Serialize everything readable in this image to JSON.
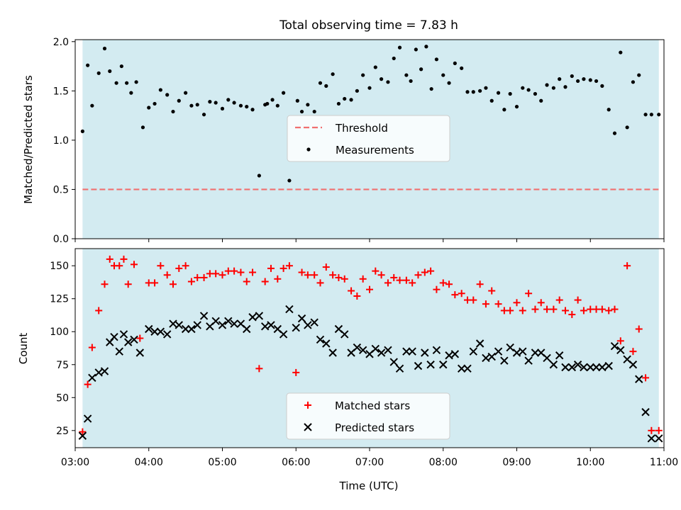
{
  "title": "Total observing time = 7.83 h",
  "colors": {
    "observing_window": "#d3ebf1",
    "threshold": "#f07070",
    "matched": "#ff0000",
    "predicted": "#000000",
    "measurement": "#000000"
  },
  "chart_data": [
    {
      "type": "scatter",
      "ylabel": "Matched/Predicted stars",
      "xlim": [
        3.0,
        11.0
      ],
      "ylim": [
        0,
        2.02
      ],
      "yticks": [
        0.0,
        0.5,
        1.0,
        1.5,
        2.0
      ],
      "ytick_labels": [
        "0.0",
        "0.5",
        "1.0",
        "1.5",
        "2.0"
      ],
      "observing_window": [
        3.1,
        10.93
      ],
      "threshold": {
        "name": "Threshold",
        "value": 0.5
      },
      "legend": {
        "position": "center",
        "entries": [
          "Threshold",
          "Measurements"
        ]
      },
      "series": [
        {
          "name": "Measurements",
          "x": [
            3.1,
            3.17,
            3.23,
            3.32,
            3.4,
            3.47,
            3.56,
            3.63,
            3.7,
            3.76,
            3.83,
            3.92,
            4.0,
            4.08,
            4.16,
            4.25,
            4.33,
            4.41,
            4.5,
            4.58,
            4.66,
            4.75,
            4.83,
            4.91,
            5.0,
            5.08,
            5.16,
            5.25,
            5.33,
            5.41,
            5.5,
            5.58,
            5.61,
            5.68,
            5.75,
            5.83,
            5.91,
            6.02,
            6.08,
            6.16,
            6.25,
            6.33,
            6.41,
            6.5,
            6.58,
            6.66,
            6.75,
            6.83,
            6.91,
            7.0,
            7.08,
            7.16,
            7.25,
            7.33,
            7.41,
            7.5,
            7.56,
            7.63,
            7.7,
            7.77,
            7.84,
            7.91,
            8.0,
            8.08,
            8.16,
            8.25,
            8.33,
            8.41,
            8.5,
            8.58,
            8.66,
            8.75,
            8.83,
            8.91,
            9.0,
            9.08,
            9.16,
            9.25,
            9.33,
            9.41,
            9.5,
            9.58,
            9.66,
            9.75,
            9.83,
            9.91,
            10.0,
            10.08,
            10.16,
            10.25,
            10.33,
            10.41,
            10.5,
            10.58,
            10.66,
            10.75,
            10.83,
            10.93
          ],
          "values": [
            1.09,
            1.76,
            1.35,
            1.68,
            1.93,
            1.7,
            1.58,
            1.75,
            1.58,
            1.48,
            1.59,
            1.13,
            1.33,
            1.37,
            1.51,
            1.46,
            1.29,
            1.4,
            1.48,
            1.35,
            1.36,
            1.26,
            1.39,
            1.38,
            1.32,
            1.41,
            1.38,
            1.35,
            1.34,
            1.31,
            0.64,
            1.36,
            1.37,
            1.41,
            1.35,
            1.48,
            0.59,
            1.4,
            1.29,
            1.36,
            1.29,
            1.58,
            1.55,
            1.67,
            1.37,
            1.42,
            1.41,
            1.5,
            1.66,
            1.53,
            1.74,
            1.62,
            1.59,
            1.83,
            1.94,
            1.66,
            1.6,
            1.92,
            1.72,
            1.95,
            1.52,
            1.82,
            1.66,
            1.58,
            1.78,
            1.73,
            1.49,
            1.49,
            1.5,
            1.53,
            1.4,
            1.48,
            1.31,
            1.47,
            1.34,
            1.53,
            1.51,
            1.47,
            1.4,
            1.56,
            1.53,
            1.62,
            1.54,
            1.65,
            1.6,
            1.62,
            1.61,
            1.6,
            1.55,
            1.31,
            1.07,
            1.89,
            1.13,
            1.59,
            1.66,
            1.26,
            1.26,
            1.26
          ]
        }
      ]
    },
    {
      "type": "scatter",
      "ylabel": "Count",
      "xlabel": "Time (UTC)",
      "xlim": [
        3.0,
        11.0
      ],
      "ylim": [
        12,
        163
      ],
      "yticks": [
        25,
        50,
        75,
        100,
        125,
        150
      ],
      "ytick_labels": [
        "25",
        "50",
        "75",
        "100",
        "125",
        "150"
      ],
      "xticks": [
        3,
        4,
        5,
        6,
        7,
        8,
        9,
        10,
        11
      ],
      "xtick_labels": [
        "03:00",
        "04:00",
        "05:00",
        "06:00",
        "07:00",
        "08:00",
        "09:00",
        "10:00",
        "11:00"
      ],
      "observing_window": [
        3.1,
        10.93
      ],
      "legend": {
        "position": "lower center",
        "entries": [
          "Matched stars",
          "Predicted stars"
        ]
      },
      "series": [
        {
          "name": "Matched stars",
          "marker": "plus",
          "x": [
            3.1,
            3.17,
            3.23,
            3.32,
            3.4,
            3.47,
            3.53,
            3.6,
            3.66,
            3.72,
            3.8,
            3.88,
            4.0,
            4.08,
            4.16,
            4.25,
            4.33,
            4.41,
            4.5,
            4.58,
            4.66,
            4.75,
            4.83,
            4.91,
            5.0,
            5.08,
            5.16,
            5.25,
            5.33,
            5.41,
            5.5,
            5.58,
            5.66,
            5.75,
            5.83,
            5.91,
            6.0,
            6.08,
            6.16,
            6.25,
            6.33,
            6.41,
            6.5,
            6.58,
            6.66,
            6.75,
            6.83,
            6.91,
            7.0,
            7.08,
            7.16,
            7.25,
            7.33,
            7.41,
            7.5,
            7.58,
            7.66,
            7.75,
            7.83,
            7.91,
            8.0,
            8.08,
            8.16,
            8.25,
            8.33,
            8.41,
            8.5,
            8.58,
            8.66,
            8.75,
            8.83,
            8.91,
            9.0,
            9.08,
            9.16,
            9.25,
            9.33,
            9.41,
            9.5,
            9.58,
            9.66,
            9.75,
            9.83,
            9.91,
            10.0,
            10.08,
            10.16,
            10.25,
            10.33,
            10.41,
            10.5,
            10.58,
            10.66,
            10.75,
            10.83,
            10.93
          ],
          "values": [
            24,
            60,
            88,
            116,
            136,
            155,
            150,
            150,
            155,
            136,
            151,
            95,
            137,
            137,
            150,
            143,
            136,
            148,
            150,
            138,
            141,
            141,
            144,
            144,
            143,
            146,
            146,
            145,
            138,
            145,
            72,
            138,
            148,
            140,
            148,
            150,
            69,
            145,
            143,
            143,
            137,
            149,
            143,
            141,
            140,
            131,
            127,
            140,
            132,
            146,
            143,
            137,
            141,
            139,
            139,
            137,
            143,
            145,
            146,
            132,
            137,
            136,
            128,
            129,
            124,
            124,
            136,
            121,
            131,
            121,
            116,
            116,
            122,
            116,
            129,
            117,
            122,
            117,
            117,
            124,
            116,
            113,
            124,
            116,
            117,
            117,
            117,
            116,
            117,
            93,
            150,
            85,
            102,
            65,
            25,
            25
          ],
          "_note": ""
        },
        {
          "name": "Predicted stars",
          "marker": "x",
          "x": [
            3.1,
            3.17,
            3.23,
            3.32,
            3.4,
            3.47,
            3.53,
            3.6,
            3.66,
            3.72,
            3.8,
            3.88,
            4.0,
            4.08,
            4.16,
            4.25,
            4.33,
            4.41,
            4.5,
            4.58,
            4.66,
            4.75,
            4.83,
            4.91,
            5.0,
            5.08,
            5.16,
            5.25,
            5.33,
            5.41,
            5.5,
            5.58,
            5.66,
            5.75,
            5.83,
            5.91,
            6.0,
            6.08,
            6.16,
            6.25,
            6.33,
            6.41,
            6.5,
            6.58,
            6.66,
            6.75,
            6.83,
            6.91,
            7.0,
            7.08,
            7.16,
            7.25,
            7.33,
            7.41,
            7.5,
            7.58,
            7.66,
            7.75,
            7.83,
            7.91,
            8.0,
            8.08,
            8.16,
            8.25,
            8.33,
            8.41,
            8.5,
            8.58,
            8.66,
            8.75,
            8.83,
            8.91,
            9.0,
            9.08,
            9.16,
            9.25,
            9.33,
            9.41,
            9.5,
            9.58,
            9.66,
            9.75,
            9.83,
            9.91,
            10.0,
            10.08,
            10.16,
            10.25,
            10.33,
            10.41,
            10.5,
            10.58,
            10.66,
            10.75,
            10.83,
            10.93
          ],
          "values": [
            21,
            34,
            65,
            69,
            70,
            92,
            96,
            85,
            98,
            92,
            94,
            84,
            102,
            100,
            100,
            98,
            106,
            105,
            102,
            102,
            105,
            112,
            104,
            108,
            105,
            108,
            106,
            106,
            102,
            111,
            112,
            104,
            105,
            102,
            98,
            117,
            103,
            110,
            105,
            107,
            94,
            91,
            84,
            102,
            98,
            84,
            88,
            86,
            83,
            87,
            84,
            86,
            77,
            72,
            85,
            85,
            74,
            84,
            75,
            86,
            75,
            82,
            83,
            72,
            72,
            85,
            91,
            80,
            81,
            85,
            78,
            88,
            84,
            85,
            78,
            84,
            84,
            80,
            75,
            82,
            73,
            73,
            75,
            73,
            73,
            73,
            73,
            74,
            89,
            86,
            79,
            75,
            64,
            39,
            19,
            19
          ]
        }
      ]
    }
  ]
}
